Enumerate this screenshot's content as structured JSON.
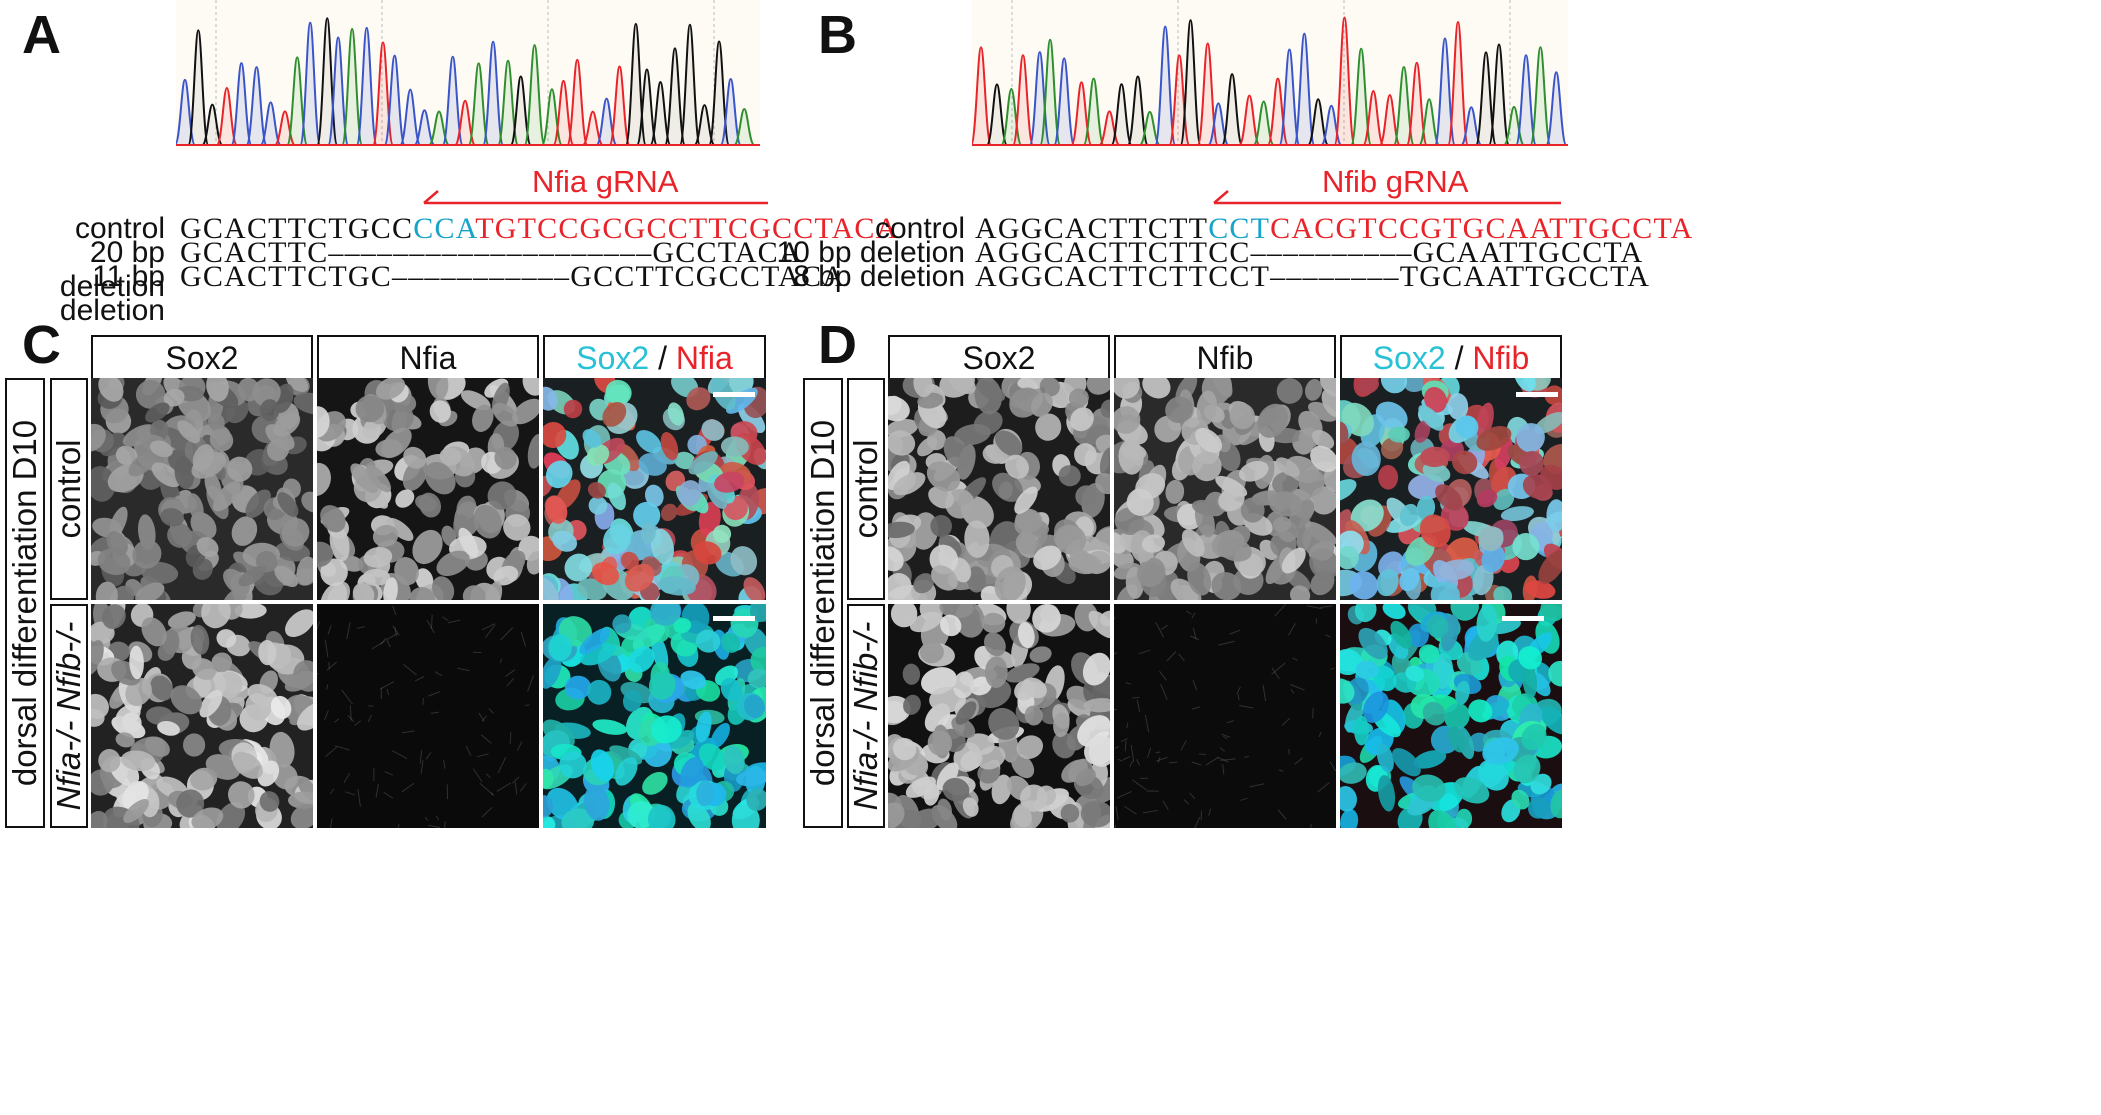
{
  "panels": {
    "a": "A",
    "b": "B",
    "c": "C",
    "d": "D"
  },
  "seqA": {
    "grna_label": "Nfia gRNA",
    "rows": [
      {
        "label": "control",
        "parts": [
          {
            "t": "GCACTTCTGCC",
            "c": ""
          },
          {
            "t": "CCA",
            "c": "cyan"
          },
          {
            "t": "TGTCCGCGCCTTCGCCTACA",
            "c": "red"
          }
        ]
      },
      {
        "label": "20 bp deletion",
        "parts": [
          {
            "t": "GCACTTC––––––––––––––––––––GCCTACA",
            "c": ""
          }
        ]
      },
      {
        "label": "11 bp deletion",
        "parts": [
          {
            "t": "GCACTTCTGC–––––––––––GCCTTCGCCTACA",
            "c": ""
          }
        ]
      }
    ]
  },
  "seqB": {
    "grna_label": "Nfib gRNA",
    "rows": [
      {
        "label": "control",
        "parts": [
          {
            "t": "AGGCACTTCTT",
            "c": ""
          },
          {
            "t": "CCT",
            "c": "cyan"
          },
          {
            "t": "CACGTCCGTGCAATTGCCTA",
            "c": "red"
          }
        ]
      },
      {
        "label": "10 bp deletion",
        "parts": [
          {
            "t": "AGGCACTTCTTCC––––––––––GCAATTGCCTA",
            "c": ""
          }
        ]
      },
      {
        "label": "8 bp deletion",
        "parts": [
          {
            "t": "AGGCACTTCTTCCT––––––––TGCAATTGCCTA",
            "c": ""
          }
        ]
      }
    ]
  },
  "panelC": {
    "col1": "Sox2",
    "col2": "Nfia",
    "merge_a": "Sox2",
    "merge_sep": " / ",
    "merge_b": "Nfia",
    "row_group": "dorsal differentiation D10",
    "row1": "control",
    "row2": "Nfia-/- Nfib-/-"
  },
  "panelD": {
    "col1": "Sox2",
    "col2": "Nfib",
    "merge_a": "Sox2",
    "merge_sep": " / ",
    "merge_b": "Nfib",
    "row_group": "dorsal differentiation D10",
    "row1": "control",
    "row2": "Nfia-/- Nfib-/-"
  },
  "colors": {
    "A": "#2f8f2f",
    "C": "#3a55c8",
    "G": "#111111",
    "T": "#e8242a",
    "cyan_channel": "#29c9d6",
    "red_channel": "#e24848"
  }
}
